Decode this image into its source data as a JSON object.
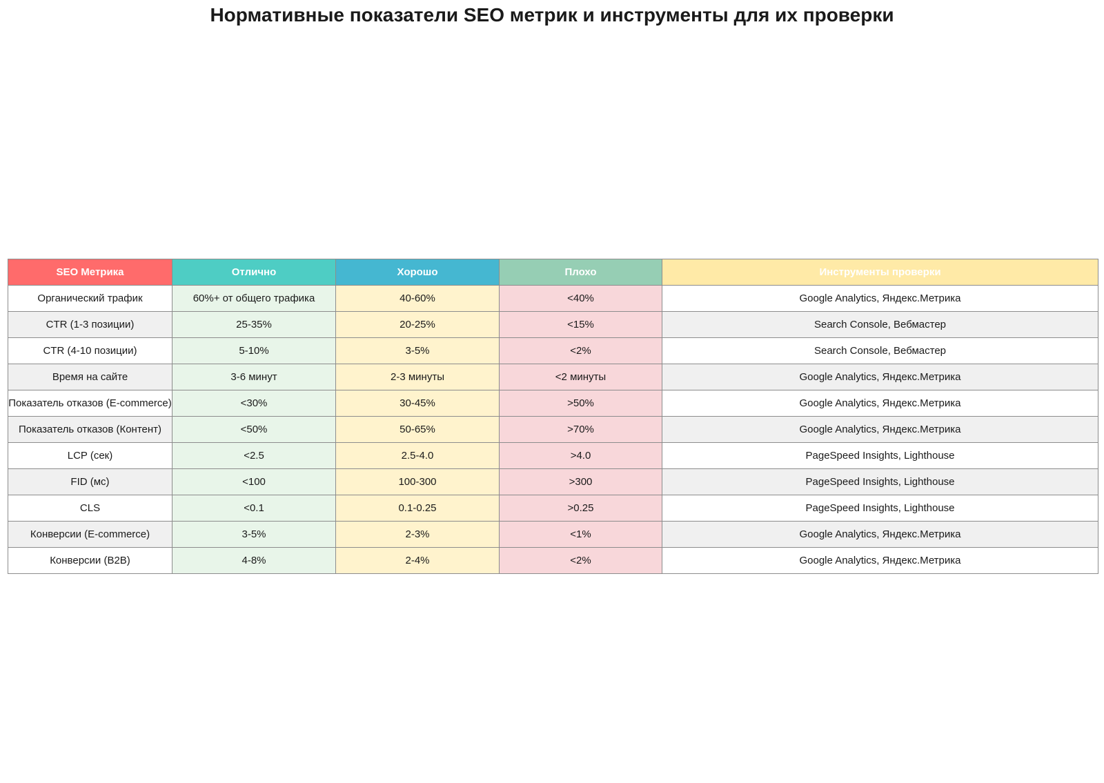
{
  "chart_data": {
    "type": "table",
    "title": "Нормативные показатели SEO метрик и инструменты для их проверки",
    "columns": [
      {
        "label": "SEO Метрика",
        "header_color": "#ff6b6b",
        "cell_colors": [
          "#ffffff",
          "#f0f0f0"
        ]
      },
      {
        "label": "Отлично",
        "header_color": "#4ecdc4",
        "cell_colors": [
          "#e8f5e9",
          "#e8f5e9"
        ]
      },
      {
        "label": "Хорошо",
        "header_color": "#45b7d1",
        "cell_colors": [
          "#fff3cd",
          "#fff3cd"
        ]
      },
      {
        "label": "Плохо",
        "header_color": "#96ceb4",
        "cell_colors": [
          "#f8d7da",
          "#f8d7da"
        ]
      },
      {
        "label": "Инструменты проверки",
        "header_color": "#ffeaa7",
        "cell_colors": [
          "#ffffff",
          "#f0f0f0"
        ]
      }
    ],
    "rows": [
      [
        "Органический трафик",
        "60%+ от общего трафика",
        "40-60%",
        "<40%",
        "Google Analytics, Яндекс.Метрика"
      ],
      [
        "CTR (1-3 позиции)",
        "25-35%",
        "20-25%",
        "<15%",
        "Search Console, Вебмастер"
      ],
      [
        "CTR (4-10 позиции)",
        "5-10%",
        "3-5%",
        "<2%",
        "Search Console, Вебмастер"
      ],
      [
        "Время на сайте",
        "3-6 минут",
        "2-3 минуты",
        "<2 минуты",
        "Google Analytics, Яндекс.Метрика"
      ],
      [
        "Показатель отказов (E-commerce)",
        "<30%",
        "30-45%",
        ">50%",
        "Google Analytics, Яндекс.Метрика"
      ],
      [
        "Показатель отказов (Контент)",
        "<50%",
        "50-65%",
        ">70%",
        "Google Analytics, Яндекс.Метрика"
      ],
      [
        "LCP (сек)",
        "<2.5",
        "2.5-4.0",
        ">4.0",
        "PageSpeed Insights, Lighthouse"
      ],
      [
        "FID (мс)",
        "<100",
        "100-300",
        ">300",
        "PageSpeed Insights, Lighthouse"
      ],
      [
        "CLS",
        "<0.1",
        "0.1-0.25",
        ">0.25",
        "PageSpeed Insights, Lighthouse"
      ],
      [
        "Конверсии (E-commerce)",
        "3-5%",
        "2-3%",
        "<1%",
        "Google Analytics, Яндекс.Метрика"
      ],
      [
        "Конверсии (B2B)",
        "4-8%",
        "2-4%",
        "<2%",
        "Google Analytics, Яндекс.Метрика"
      ]
    ],
    "border_color": "#8c8c8c"
  }
}
